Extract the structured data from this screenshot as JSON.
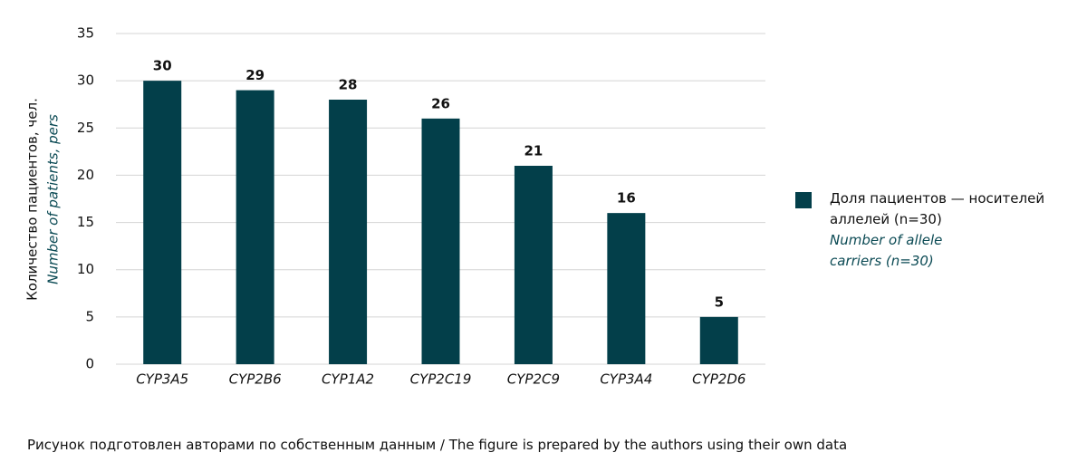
{
  "chart_data": {
    "type": "bar",
    "y_label": "Количество пациентов, чел.",
    "y_label_en": "Number of patients, pers",
    "categories": [
      "CYP3A5",
      "CYP2B6",
      "CYP1A2",
      "CYP2C19",
      "CYP2C9",
      "CYP3A4",
      "CYP2D6"
    ],
    "series": [
      {
        "name": "Доля пациентов — носителей аллелей (n=30)",
        "color": "#033f4a",
        "values": [
          30,
          29,
          28,
          26,
          21,
          16,
          5
        ]
      }
    ],
    "legend_subtitle": "Number of allele carriers (n=30)",
    "legend_position": "right",
    "ylim": [
      0,
      35
    ],
    "yticks": [
      0,
      5,
      10,
      15,
      20,
      25,
      30,
      35
    ],
    "grid": true,
    "note": "Рисунок подготовлен авторами по собственным данным / The figure is prepared by the authors using their own data"
  }
}
